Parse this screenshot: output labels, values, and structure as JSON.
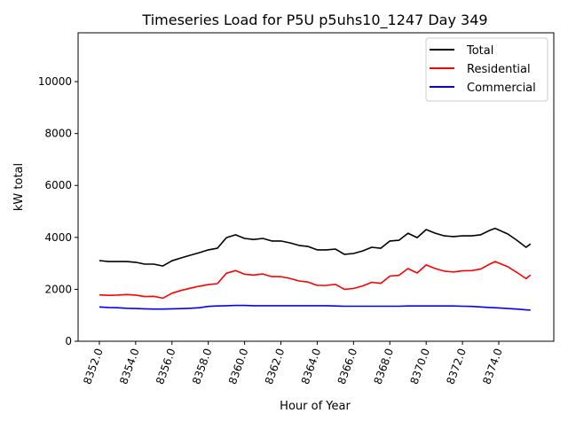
{
  "chart_data": {
    "type": "line",
    "title": "Timeseries Load for P5U p5uhs10_1247  Day 349",
    "xlabel": "Hour of Year",
    "ylabel": "kW total",
    "xlim": [
      8350.83,
      8377.03
    ],
    "ylim": [
      0,
      11880
    ],
    "xticks": [
      8352,
      8354,
      8356,
      8358,
      8360,
      8362,
      8364,
      8366,
      8368,
      8370,
      8372,
      8374
    ],
    "xtick_labels": [
      "8352.0",
      "8354.0",
      "8356.0",
      "8358.0",
      "8360.0",
      "8362.0",
      "8364.0",
      "8366.0",
      "8368.0",
      "8370.0",
      "8372.0",
      "8374.0"
    ],
    "yticks": [
      0,
      2000,
      4000,
      6000,
      8000,
      10000
    ],
    "ytick_labels": [
      "0",
      "2000",
      "4000",
      "6000",
      "8000",
      "10000"
    ],
    "grid": false,
    "legend_position": "top-right",
    "x": [
      8352,
      8352.5,
      8353,
      8353.5,
      8354,
      8354.5,
      8355,
      8355.5,
      8356,
      8356.5,
      8357,
      8357.5,
      8358,
      8358.5,
      8359,
      8359.5,
      8360,
      8360.5,
      8361,
      8361.5,
      8362,
      8362.5,
      8363,
      8363.5,
      8364,
      8364.5,
      8365,
      8365.5,
      8366,
      8366.5,
      8367,
      8367.5,
      8368,
      8368.5,
      8369,
      8369.5,
      8370,
      8370.5,
      8371,
      8371.5,
      8372,
      8372.5,
      8373,
      8373.5,
      8373.8,
      8374.5,
      8375,
      8375.5,
      8375.75
    ],
    "series": [
      {
        "name": "Total",
        "color": "#000000",
        "values": [
          3105,
          3070,
          3070,
          3070,
          3040,
          2970,
          2970,
          2900,
          3100,
          3210,
          3310,
          3410,
          3520,
          3580,
          3990,
          4100,
          3960,
          3920,
          3960,
          3860,
          3860,
          3790,
          3690,
          3650,
          3520,
          3520,
          3550,
          3350,
          3380,
          3480,
          3620,
          3580,
          3860,
          3890,
          4160,
          3990,
          4300,
          4160,
          4060,
          4030,
          4060,
          4060,
          4100,
          4270,
          4350,
          4130,
          3890,
          3620,
          3750
        ]
      },
      {
        "name": "Residential",
        "color": "#ff0000",
        "values": [
          1785,
          1770,
          1780,
          1800,
          1780,
          1720,
          1730,
          1660,
          1850,
          1955,
          2040,
          2120,
          2180,
          2220,
          2620,
          2720,
          2580,
          2550,
          2590,
          2490,
          2490,
          2420,
          2320,
          2280,
          2150,
          2150,
          2190,
          2000,
          2030,
          2130,
          2270,
          2230,
          2510,
          2540,
          2800,
          2630,
          2940,
          2800,
          2700,
          2670,
          2710,
          2720,
          2780,
          2970,
          3070,
          2870,
          2650,
          2410,
          2550
        ]
      },
      {
        "name": "Commercial",
        "color": "#0000ff",
        "values": [
          1320,
          1300,
          1290,
          1270,
          1260,
          1250,
          1240,
          1240,
          1250,
          1255,
          1270,
          1290,
          1340,
          1360,
          1370,
          1380,
          1380,
          1370,
          1370,
          1370,
          1370,
          1370,
          1370,
          1370,
          1370,
          1370,
          1360,
          1350,
          1350,
          1350,
          1350,
          1350,
          1350,
          1350,
          1360,
          1360,
          1360,
          1360,
          1360,
          1360,
          1350,
          1340,
          1320,
          1300,
          1290,
          1260,
          1240,
          1210,
          1200
        ]
      }
    ]
  }
}
